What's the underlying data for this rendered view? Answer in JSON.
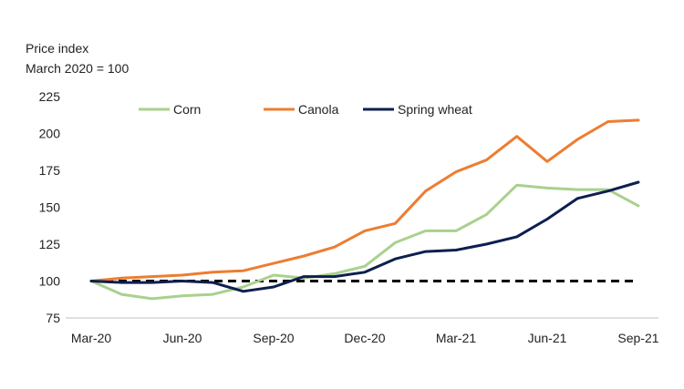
{
  "chart_data": {
    "type": "line",
    "ylabel_lines": [
      "Price index",
      "March 2020 = 100"
    ],
    "ylim": [
      75,
      225
    ],
    "yticks": [
      75,
      100,
      125,
      150,
      175,
      200,
      225
    ],
    "x_tick_labels": [
      "Mar-20",
      "Jun-20",
      "Sep-20",
      "Dec-20",
      "Mar-21",
      "Jun-21",
      "Sep-21"
    ],
    "x_tick_index": [
      0,
      3,
      6,
      9,
      12,
      15,
      18
    ],
    "x": [
      "Mar-20",
      "Apr-20",
      "May-20",
      "Jun-20",
      "Jul-20",
      "Aug-20",
      "Sep-20",
      "Oct-20",
      "Nov-20",
      "Dec-20",
      "Jan-21",
      "Feb-21",
      "Mar-21",
      "Apr-21",
      "May-21",
      "Jun-21",
      "Jul-21",
      "Aug-21",
      "Sep-21"
    ],
    "legend_position": "top",
    "series": [
      {
        "name": "Corn",
        "color": "#a9d18e",
        "values": [
          100,
          91,
          88,
          90,
          91,
          96,
          104,
          102,
          105,
          110,
          126,
          134,
          134,
          145,
          165,
          163,
          162,
          162,
          151
        ]
      },
      {
        "name": "Canola",
        "color": "#ed7d31",
        "values": [
          100,
          102,
          103,
          104,
          106,
          107,
          112,
          117,
          123,
          134,
          139,
          161,
          174,
          182,
          198,
          181,
          196,
          208,
          209
        ]
      },
      {
        "name": "Spring wheat",
        "color": "#0d1f4f",
        "values": [
          100,
          99,
          99,
          100,
          99,
          93,
          96,
          103,
          103,
          106,
          115,
          120,
          121,
          125,
          130,
          142,
          156,
          161,
          167
        ]
      }
    ],
    "reference_line": {
      "value": 100,
      "style": "dashed",
      "color": "#000000"
    }
  }
}
